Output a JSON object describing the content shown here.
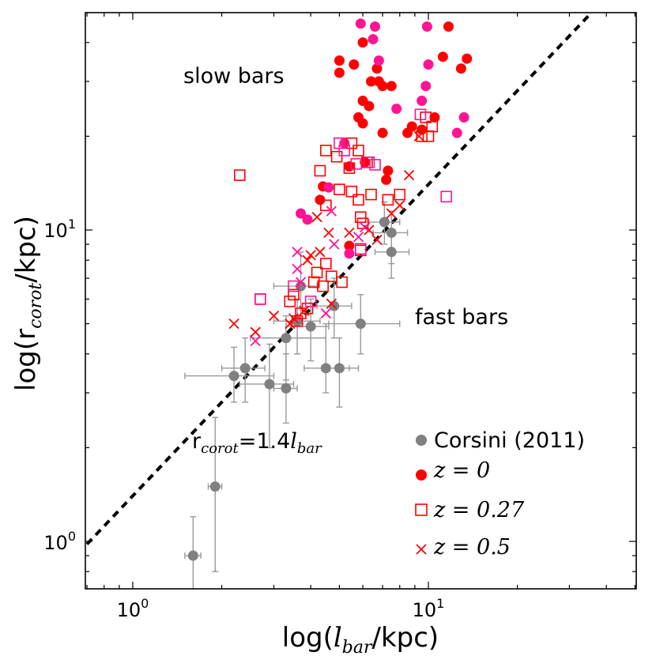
{
  "chart_data": {
    "type": "scatter",
    "title": "",
    "xlabel_parts": [
      "log(",
      "l",
      "bar",
      "/kpc)"
    ],
    "ylabel_parts": [
      "log(r",
      "corot",
      "/kpc)"
    ],
    "xscale": "log",
    "yscale": "log",
    "xlim": [
      0.7,
      50
    ],
    "ylim": [
      0.7,
      45
    ],
    "grid": false,
    "legend_location": "lower-right",
    "x_tick_labels": [
      {
        "value": 1,
        "base": "10",
        "exp": "0"
      },
      {
        "value": 10,
        "base": "10",
        "exp": "1"
      }
    ],
    "y_tick_labels": [
      {
        "value": 1,
        "base": "10",
        "exp": "0"
      },
      {
        "value": 10,
        "base": "10",
        "exp": "1"
      }
    ],
    "annotations": {
      "slow": "slow bars",
      "fast": "fast bars",
      "line_parts": [
        "r",
        "corot",
        "=1.4",
        "l",
        "bar"
      ]
    },
    "reference_line": {
      "slope": 1.4,
      "style": "dashed",
      "color": "#000000"
    },
    "colors": {
      "corsini": "#808080",
      "red": "#ff0000",
      "magenta": "#ff1493",
      "errorbar": "#999999"
    },
    "legend": [
      {
        "label": "Corsini (2011)",
        "marker": "circle",
        "color": "#808080"
      },
      {
        "label": "z = 0",
        "marker": "circle",
        "color": "#ff0000"
      },
      {
        "label": "z = 0.27",
        "marker": "square-open",
        "color": "#ff0000"
      },
      {
        "label": "z = 0.5",
        "marker": "x",
        "color": "#ff0000"
      }
    ],
    "series": [
      {
        "name": "Corsini (2011)",
        "marker": "circle",
        "points": [
          {
            "x": 1.6,
            "y": 0.9,
            "xerr": [
              1.5,
              1.7
            ],
            "yerr": [
              0.7,
              1.2
            ]
          },
          {
            "x": 1.9,
            "y": 1.5,
            "xerr": [
              1.8,
              2.0
            ],
            "yerr": [
              0.8,
              2.5
            ]
          },
          {
            "x": 2.2,
            "y": 3.4,
            "xerr": [
              1.5,
              3.0
            ],
            "yerr": [
              2.8,
              4.2
            ]
          },
          {
            "x": 2.4,
            "y": 3.6,
            "xerr": [
              2.0,
              2.8
            ],
            "yerr": [
              2.8,
              4.5
            ]
          },
          {
            "x": 2.9,
            "y": 3.2,
            "xerr": [
              2.3,
              3.5
            ],
            "yerr": [
              2.0,
              4.3
            ]
          },
          {
            "x": 3.3,
            "y": 3.1,
            "xerr": [
              3.0,
              3.6
            ],
            "yerr": [
              2.4,
              4.0
            ]
          },
          {
            "x": 3.3,
            "y": 4.5,
            "xerr": [
              2.5,
              4.5
            ],
            "yerr": [
              3.3,
              5.3
            ]
          },
          {
            "x": 3.7,
            "y": 6.6,
            "xerr": [
              3.0,
              4.2
            ],
            "yerr": [
              5.0,
              8.5
            ]
          },
          {
            "x": 3.6,
            "y": 5.1,
            "xerr": [
              3.0,
              4.3
            ],
            "yerr": [
              4.0,
              6.0
            ]
          },
          {
            "x": 4.0,
            "y": 4.9,
            "xerr": [
              3.3,
              4.6
            ],
            "yerr": [
              3.8,
              6.0
            ]
          },
          {
            "x": 4.5,
            "y": 3.6,
            "xerr": [
              3.8,
              5.4
            ],
            "yerr": [
              3.0,
              5.0
            ]
          },
          {
            "x": 5.0,
            "y": 3.6,
            "xerr": [
              4.4,
              5.8
            ],
            "yerr": [
              2.7,
              4.5
            ]
          },
          {
            "x": 4.8,
            "y": 5.7,
            "xerr": [
              4.2,
              5.5
            ],
            "yerr": [
              4.5,
              7.0
            ]
          },
          {
            "x": 5.9,
            "y": 5.0,
            "xerr": [
              4.6,
              8.0
            ],
            "yerr": [
              4.0,
              6.2
            ]
          },
          {
            "x": 7.1,
            "y": 10.6,
            "xerr": [
              6.3,
              8.0
            ],
            "yerr": [
              9.0,
              12.3
            ]
          },
          {
            "x": 7.5,
            "y": 9.8,
            "xerr": [
              6.5,
              8.5
            ],
            "yerr": [
              7.8,
              11.5
            ]
          },
          {
            "x": 7.5,
            "y": 8.5,
            "xerr": [
              6.6,
              8.6
            ],
            "yerr": [
              7.0,
              10.0
            ]
          }
        ]
      },
      {
        "name": "z = 0",
        "marker": "circle",
        "points": [
          {
            "x": 5.0,
            "y": 35.0,
            "c": "red"
          },
          {
            "x": 5.0,
            "y": 32.0,
            "c": "red"
          },
          {
            "x": 5.6,
            "y": 34.0,
            "c": "red"
          },
          {
            "x": 6.0,
            "y": 40.0,
            "c": "red"
          },
          {
            "x": 6.4,
            "y": 30.0,
            "c": "red"
          },
          {
            "x": 6.7,
            "y": 33.0,
            "c": "red"
          },
          {
            "x": 6.8,
            "y": 30.0,
            "c": "red"
          },
          {
            "x": 7.0,
            "y": 29.0,
            "c": "red"
          },
          {
            "x": 7.5,
            "y": 29.0,
            "c": "red"
          },
          {
            "x": 6.0,
            "y": 26.0,
            "c": "red"
          },
          {
            "x": 6.3,
            "y": 25.0,
            "c": "red"
          },
          {
            "x": 5.8,
            "y": 23.0,
            "c": "red"
          },
          {
            "x": 6.0,
            "y": 22.0,
            "c": "red"
          },
          {
            "x": 7.0,
            "y": 20.5,
            "c": "red"
          },
          {
            "x": 8.5,
            "y": 20.5,
            "c": "red"
          },
          {
            "x": 8.8,
            "y": 21.5,
            "c": "red"
          },
          {
            "x": 9.5,
            "y": 21.0,
            "c": "red"
          },
          {
            "x": 10.5,
            "y": 23.0,
            "c": "red"
          },
          {
            "x": 11.7,
            "y": 45.0,
            "c": "red"
          },
          {
            "x": 11.2,
            "y": 36.0,
            "c": "red"
          },
          {
            "x": 12.9,
            "y": 33.0,
            "c": "red"
          },
          {
            "x": 13.5,
            "y": 35.5,
            "c": "red"
          },
          {
            "x": 5.4,
            "y": 16.0,
            "c": "red"
          },
          {
            "x": 6.1,
            "y": 16.5,
            "c": "red"
          },
          {
            "x": 7.3,
            "y": 15.5,
            "c": "red"
          },
          {
            "x": 4.4,
            "y": 13.8,
            "c": "red"
          },
          {
            "x": 7.2,
            "y": 14.5,
            "c": "red"
          },
          {
            "x": 4.3,
            "y": 12.5,
            "c": "red"
          },
          {
            "x": 5.4,
            "y": 8.9,
            "c": "red"
          },
          {
            "x": 5.9,
            "y": 46.0,
            "c": "magenta"
          },
          {
            "x": 6.6,
            "y": 45.0,
            "c": "magenta"
          },
          {
            "x": 6.5,
            "y": 41.0,
            "c": "magenta"
          },
          {
            "x": 6.8,
            "y": 35.0,
            "c": "magenta"
          },
          {
            "x": 9.9,
            "y": 45.0,
            "c": "magenta"
          },
          {
            "x": 10.0,
            "y": 34.0,
            "c": "magenta"
          },
          {
            "x": 9.8,
            "y": 29.0,
            "c": "magenta"
          },
          {
            "x": 9.5,
            "y": 26.0,
            "c": "magenta"
          },
          {
            "x": 13.2,
            "y": 23.0,
            "c": "magenta"
          },
          {
            "x": 7.8,
            "y": 24.5,
            "c": "magenta"
          },
          {
            "x": 12.5,
            "y": 20.5,
            "c": "magenta"
          },
          {
            "x": 5.2,
            "y": 19.0,
            "c": "magenta"
          },
          {
            "x": 4.6,
            "y": 13.7,
            "c": "magenta"
          },
          {
            "x": 3.7,
            "y": 11.3,
            "c": "magenta"
          },
          {
            "x": 3.9,
            "y": 10.8,
            "c": "magenta"
          },
          {
            "x": 5.4,
            "y": 8.4,
            "c": "magenta"
          }
        ]
      },
      {
        "name": "z = 0.27",
        "marker": "square-open",
        "points": [
          {
            "x": 2.3,
            "y": 15.0,
            "c": "red"
          },
          {
            "x": 4.5,
            "y": 18.0,
            "c": "red"
          },
          {
            "x": 4.3,
            "y": 15.5,
            "c": "red"
          },
          {
            "x": 4.9,
            "y": 17.2,
            "c": "red"
          },
          {
            "x": 5.5,
            "y": 19.0,
            "c": "red"
          },
          {
            "x": 5.8,
            "y": 18.0,
            "c": "red"
          },
          {
            "x": 6.2,
            "y": 16.5,
            "c": "red"
          },
          {
            "x": 5.4,
            "y": 15.8,
            "c": "red"
          },
          {
            "x": 6.4,
            "y": 13.0,
            "c": "red"
          },
          {
            "x": 5.5,
            "y": 13.3,
            "c": "red"
          },
          {
            "x": 5.0,
            "y": 13.5,
            "c": "red"
          },
          {
            "x": 5.8,
            "y": 12.5,
            "c": "red"
          },
          {
            "x": 4.5,
            "y": 12.0,
            "c": "red"
          },
          {
            "x": 7.3,
            "y": 12.5,
            "c": "red"
          },
          {
            "x": 8.0,
            "y": 13.0,
            "c": "red"
          },
          {
            "x": 5.9,
            "y": 11.0,
            "c": "red"
          },
          {
            "x": 6.0,
            "y": 10.5,
            "c": "red"
          },
          {
            "x": 9.5,
            "y": 20.0,
            "c": "red"
          },
          {
            "x": 10.0,
            "y": 20.0,
            "c": "red"
          },
          {
            "x": 10.3,
            "y": 21.5,
            "c": "red"
          },
          {
            "x": 9.8,
            "y": 23.0,
            "c": "red"
          },
          {
            "x": 4.2,
            "y": 7.3,
            "c": "red"
          },
          {
            "x": 4.5,
            "y": 7.8,
            "c": "red"
          },
          {
            "x": 3.5,
            "y": 6.2,
            "c": "red"
          },
          {
            "x": 3.4,
            "y": 5.9,
            "c": "red"
          },
          {
            "x": 4.1,
            "y": 6.8,
            "c": "red"
          },
          {
            "x": 5.1,
            "y": 6.8,
            "c": "red"
          },
          {
            "x": 4.4,
            "y": 6.6,
            "c": "red"
          },
          {
            "x": 4.7,
            "y": 7.1,
            "c": "red"
          },
          {
            "x": 3.9,
            "y": 5.6,
            "c": "red"
          },
          {
            "x": 2.7,
            "y": 6.0,
            "c": "red"
          },
          {
            "x": 3.7,
            "y": 5.4,
            "c": "red"
          },
          {
            "x": 3.6,
            "y": 5.1,
            "c": "red"
          },
          {
            "x": 5.9,
            "y": 8.6,
            "c": "red"
          },
          {
            "x": 5.0,
            "y": 19.0,
            "c": "magenta"
          },
          {
            "x": 5.2,
            "y": 18.0,
            "c": "magenta"
          },
          {
            "x": 5.7,
            "y": 16.3,
            "c": "magenta"
          },
          {
            "x": 6.3,
            "y": 16.5,
            "c": "magenta"
          },
          {
            "x": 6.6,
            "y": 16.2,
            "c": "magenta"
          },
          {
            "x": 9.4,
            "y": 23.5,
            "c": "magenta"
          },
          {
            "x": 11.5,
            "y": 12.8,
            "c": "magenta"
          },
          {
            "x": 2.7,
            "y": 6.0,
            "c": "magenta"
          },
          {
            "x": 3.5,
            "y": 6.6,
            "c": "magenta"
          },
          {
            "x": 4.0,
            "y": 5.9,
            "c": "magenta"
          },
          {
            "x": 5.9,
            "y": 8.7,
            "c": "magenta"
          }
        ]
      },
      {
        "name": "z = 0.5",
        "marker": "x",
        "points": [
          {
            "x": 2.2,
            "y": 5.0,
            "c": "red"
          },
          {
            "x": 2.6,
            "y": 4.7,
            "c": "red"
          },
          {
            "x": 3.0,
            "y": 5.3,
            "c": "red"
          },
          {
            "x": 3.4,
            "y": 5.0,
            "c": "red"
          },
          {
            "x": 3.5,
            "y": 5.2,
            "c": "red"
          },
          {
            "x": 3.8,
            "y": 5.5,
            "c": "red"
          },
          {
            "x": 4.0,
            "y": 8.3,
            "c": "red"
          },
          {
            "x": 4.3,
            "y": 8.5,
            "c": "red"
          },
          {
            "x": 4.2,
            "y": 11.0,
            "c": "red"
          },
          {
            "x": 4.6,
            "y": 9.8,
            "c": "red"
          },
          {
            "x": 5.4,
            "y": 9.8,
            "c": "red"
          },
          {
            "x": 6.3,
            "y": 10.0,
            "c": "red"
          },
          {
            "x": 6.7,
            "y": 9.3,
            "c": "red"
          },
          {
            "x": 7.5,
            "y": 11.3,
            "c": "red"
          },
          {
            "x": 8.0,
            "y": 12.0,
            "c": "red"
          },
          {
            "x": 8.6,
            "y": 15.0,
            "c": "red"
          },
          {
            "x": 4.7,
            "y": 5.8,
            "c": "red"
          },
          {
            "x": 3.9,
            "y": 8.0,
            "c": "red"
          },
          {
            "x": 9.3,
            "y": 20.0,
            "c": "red"
          },
          {
            "x": 2.6,
            "y": 4.4,
            "c": "magenta"
          },
          {
            "x": 3.6,
            "y": 8.5,
            "c": "magenta"
          },
          {
            "x": 3.6,
            "y": 7.5,
            "c": "magenta"
          },
          {
            "x": 4.7,
            "y": 11.5,
            "c": "magenta"
          },
          {
            "x": 4.8,
            "y": 9.0,
            "c": "magenta"
          },
          {
            "x": 5.8,
            "y": 9.5,
            "c": "magenta"
          },
          {
            "x": 6.1,
            "y": 10.2,
            "c": "magenta"
          },
          {
            "x": 4.5,
            "y": 5.4,
            "c": "magenta"
          },
          {
            "x": 3.7,
            "y": 6.8,
            "c": "magenta"
          }
        ]
      }
    ]
  }
}
